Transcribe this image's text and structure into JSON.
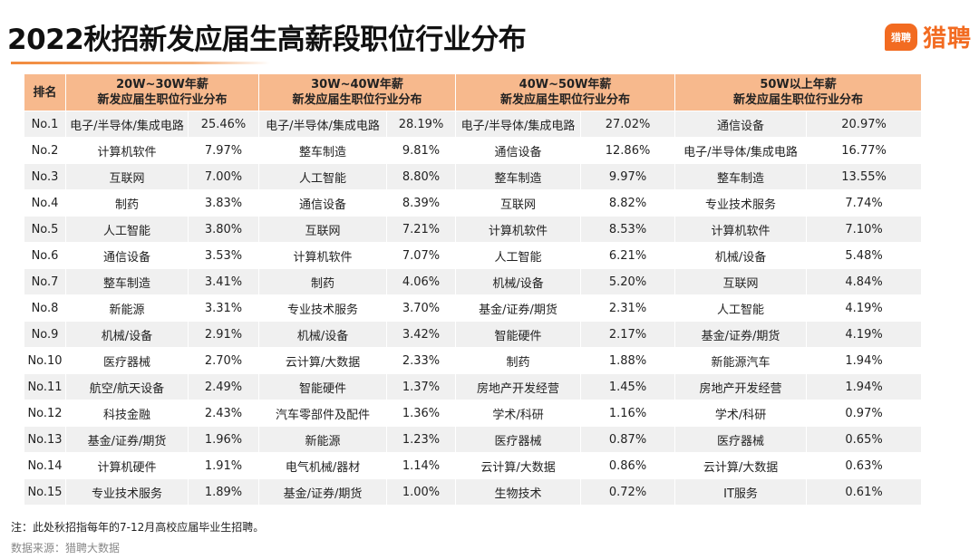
{
  "title": "2022秋招新发应届生高薪段职位行业分布",
  "logo": {
    "mark_text": "猎聘",
    "brand_text": "猎聘"
  },
  "colors": {
    "accent": "#f26b21",
    "header_bg": "#f7b98d",
    "stripe": "#f0f0f0"
  },
  "table": {
    "rank_header": "排名",
    "groups": [
      {
        "line1": "20W~30W年薪",
        "line2": "新发应届生职位行业分布"
      },
      {
        "line1": "30W~40W年薪",
        "line2": "新发应届生职位行业分布"
      },
      {
        "line1": "40W~50W年薪",
        "line2": "新发应届生职位行业分布"
      },
      {
        "line1": "50W以上年薪",
        "line2": "新发应届生职位行业分布"
      }
    ],
    "rows": [
      {
        "rank": "No.1",
        "cells": [
          [
            "电子/半导体/集成电路",
            "25.46%"
          ],
          [
            "电子/半导体/集成电路",
            "28.19%"
          ],
          [
            "电子/半导体/集成电路",
            "27.02%"
          ],
          [
            "通信设备",
            "20.97%"
          ]
        ]
      },
      {
        "rank": "No.2",
        "cells": [
          [
            "计算机软件",
            "7.97%"
          ],
          [
            "整车制造",
            "9.81%"
          ],
          [
            "通信设备",
            "12.86%"
          ],
          [
            "电子/半导体/集成电路",
            "16.77%"
          ]
        ]
      },
      {
        "rank": "No.3",
        "cells": [
          [
            "互联网",
            "7.00%"
          ],
          [
            "人工智能",
            "8.80%"
          ],
          [
            "整车制造",
            "9.97%"
          ],
          [
            "整车制造",
            "13.55%"
          ]
        ]
      },
      {
        "rank": "No.4",
        "cells": [
          [
            "制药",
            "3.83%"
          ],
          [
            "通信设备",
            "8.39%"
          ],
          [
            "互联网",
            "8.82%"
          ],
          [
            "专业技术服务",
            "7.74%"
          ]
        ]
      },
      {
        "rank": "No.5",
        "cells": [
          [
            "人工智能",
            "3.80%"
          ],
          [
            "互联网",
            "7.21%"
          ],
          [
            "计算机软件",
            "8.53%"
          ],
          [
            "计算机软件",
            "7.10%"
          ]
        ]
      },
      {
        "rank": "No.6",
        "cells": [
          [
            "通信设备",
            "3.53%"
          ],
          [
            "计算机软件",
            "7.07%"
          ],
          [
            "人工智能",
            "6.21%"
          ],
          [
            "机械/设备",
            "5.48%"
          ]
        ]
      },
      {
        "rank": "No.7",
        "cells": [
          [
            "整车制造",
            "3.41%"
          ],
          [
            "制药",
            "4.06%"
          ],
          [
            "机械/设备",
            "5.20%"
          ],
          [
            "互联网",
            "4.84%"
          ]
        ]
      },
      {
        "rank": "No.8",
        "cells": [
          [
            "新能源",
            "3.31%"
          ],
          [
            "专业技术服务",
            "3.70%"
          ],
          [
            "基金/证券/期货",
            "2.31%"
          ],
          [
            "人工智能",
            "4.19%"
          ]
        ]
      },
      {
        "rank": "No.9",
        "cells": [
          [
            "机械/设备",
            "2.91%"
          ],
          [
            "机械/设备",
            "3.42%"
          ],
          [
            "智能硬件",
            "2.17%"
          ],
          [
            "基金/证券/期货",
            "4.19%"
          ]
        ]
      },
      {
        "rank": "No.10",
        "cells": [
          [
            "医疗器械",
            "2.70%"
          ],
          [
            "云计算/大数据",
            "2.33%"
          ],
          [
            "制药",
            "1.88%"
          ],
          [
            "新能源汽车",
            "1.94%"
          ]
        ]
      },
      {
        "rank": "No.11",
        "cells": [
          [
            "航空/航天设备",
            "2.49%"
          ],
          [
            "智能硬件",
            "1.37%"
          ],
          [
            "房地产开发经营",
            "1.45%"
          ],
          [
            "房地产开发经营",
            "1.94%"
          ]
        ]
      },
      {
        "rank": "No.12",
        "cells": [
          [
            "科技金融",
            "2.43%"
          ],
          [
            "汽车零部件及配件",
            "1.36%"
          ],
          [
            "学术/科研",
            "1.16%"
          ],
          [
            "学术/科研",
            "0.97%"
          ]
        ]
      },
      {
        "rank": "No.13",
        "cells": [
          [
            "基金/证券/期货",
            "1.96%"
          ],
          [
            "新能源",
            "1.23%"
          ],
          [
            "医疗器械",
            "0.87%"
          ],
          [
            "医疗器械",
            "0.65%"
          ]
        ]
      },
      {
        "rank": "No.14",
        "cells": [
          [
            "计算机硬件",
            "1.91%"
          ],
          [
            "电气机械/器材",
            "1.14%"
          ],
          [
            "云计算/大数据",
            "0.86%"
          ],
          [
            "云计算/大数据",
            "0.63%"
          ]
        ]
      },
      {
        "rank": "No.15",
        "cells": [
          [
            "专业技术服务",
            "1.89%"
          ],
          [
            "基金/证券/期货",
            "1.00%"
          ],
          [
            "生物技术",
            "0.72%"
          ],
          [
            "IT服务",
            "0.61%"
          ]
        ]
      }
    ]
  },
  "note": "注：此处秋招指每年的7-12月高校应届毕业生招聘。",
  "source": "数据来源：猎聘大数据",
  "chart_data": {
    "type": "table",
    "title": "2022秋招新发应届生高薪段职位行业分布",
    "columns": [
      "排名",
      "20W~30W年薪 新发应届生职位行业分布",
      "30W~40W年薪 新发应届生职位行业分布",
      "40W~50W年薪 新发应届生职位行业分布",
      "50W以上年薪 新发应届生职位行业分布"
    ]
  }
}
